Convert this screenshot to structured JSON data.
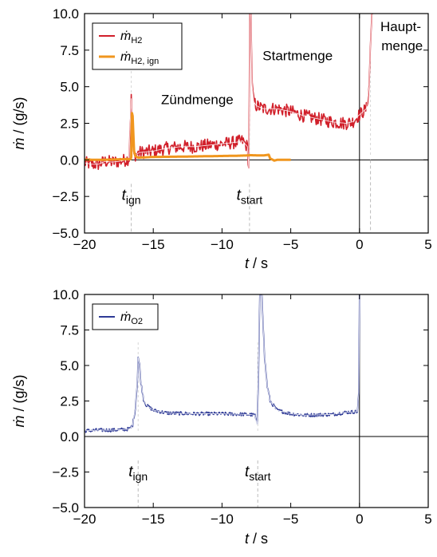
{
  "chart_data": [
    {
      "type": "line",
      "xlabel_var": "t",
      "xlabel_unit": " / s",
      "ylabel": "ṁ / (g/s)",
      "xlim": [
        -20,
        5
      ],
      "ylim": [
        -5,
        10
      ],
      "xticks": [
        -20,
        -15,
        -10,
        -5,
        0,
        5
      ],
      "yticks": [
        -5,
        -2.5,
        0,
        2.5,
        5,
        7.5,
        10
      ],
      "xtick_labels": [
        "−20",
        "−15",
        "−10",
        "−5",
        "0",
        "5"
      ],
      "ytick_labels": [
        "−5.0",
        "−2.5",
        "0.0",
        "2.5",
        "5.0",
        "7.5",
        "10.0"
      ],
      "legend_placement": "top-left",
      "legend": [
        {
          "var": "ṁ",
          "sub": "H2",
          "color": "#d11f2a"
        },
        {
          "var": "ṁ",
          "sub": "H2, ign",
          "color": "#f0961e"
        }
      ],
      "annotations": [
        {
          "text": "Zündmenge",
          "x": -11.8,
          "y": 3.8
        },
        {
          "text": "Startmenge",
          "x": -4.5,
          "y": 6.8
        },
        {
          "text": "Haupt-",
          "x": 3.0,
          "y": 8.8
        },
        {
          "text": "menge",
          "x": 3.1,
          "y": 7.5
        }
      ],
      "markers": [
        {
          "var": "t",
          "sub": "ign",
          "x": -16.6
        },
        {
          "var": "t",
          "sub": "start",
          "x": -8.0
        },
        {
          "x": 0.8
        }
      ],
      "series": [
        {
          "name": "ṁH2",
          "color": "#d11f2a",
          "noise": 0.45,
          "x": [
            -20.0,
            -19.5,
            -19.0,
            -18.5,
            -18.0,
            -17.5,
            -17.0,
            -16.75,
            -16.7,
            -16.6,
            -16.5,
            -16.4,
            -16.0,
            -15.0,
            -14.0,
            -13.0,
            -12.0,
            -11.0,
            -10.0,
            -9.0,
            -8.5,
            -8.15,
            -8.05,
            -7.98,
            -7.9,
            -7.8,
            -7.7,
            -7.5,
            -7.0,
            -6.0,
            -5.0,
            -4.0,
            -3.0,
            -2.0,
            -1.0,
            -0.5,
            -0.1,
            0.5,
            0.7,
            0.8,
            0.9,
            1.0
          ],
          "y": [
            -0.2,
            -0.3,
            -0.3,
            -0.1,
            -0.15,
            -0.1,
            0.0,
            0.1,
            2.0,
            4.2,
            1.5,
            0.3,
            0.5,
            0.6,
            0.8,
            0.9,
            0.9,
            1.0,
            1.1,
            1.2,
            1.3,
            0.9,
            -0.7,
            10.0,
            10.0,
            5.0,
            4.0,
            3.7,
            3.5,
            3.5,
            3.3,
            3.0,
            2.8,
            2.6,
            2.5,
            2.6,
            3.0,
            3.5,
            5.0,
            8.0,
            10.0,
            10.0
          ]
        },
        {
          "name": "ṁH2, ign",
          "color": "#f0961e",
          "x": [
            -20.0,
            -19.0,
            -18.0,
            -17.0,
            -16.65,
            -16.6,
            -16.55,
            -16.5,
            -16.45,
            -16.4,
            -16.3,
            -16.1,
            -15.0,
            -13.0,
            -11.0,
            -9.0,
            -8.2,
            -8.0,
            -7.0,
            -6.6,
            -6.5,
            -6.2,
            -6.0,
            -5.0
          ],
          "y": [
            0.02,
            0.0,
            0.02,
            0.05,
            0.05,
            0.2,
            3.2,
            3.0,
            1.8,
            0.6,
            0.25,
            0.15,
            0.2,
            0.22,
            0.25,
            0.28,
            0.3,
            0.32,
            0.3,
            0.35,
            0.1,
            -0.05,
            0.0,
            0.0
          ]
        }
      ]
    },
    {
      "type": "line",
      "xlabel_var": "t",
      "xlabel_unit": " / s",
      "ylabel": "ṁ / (g/s)",
      "xlim": [
        -20,
        5
      ],
      "ylim": [
        -5,
        10
      ],
      "xticks": [
        -20,
        -15,
        -10,
        -5,
        0,
        5
      ],
      "yticks": [
        -5,
        -2.5,
        0,
        2.5,
        5,
        7.5,
        10
      ],
      "xtick_labels": [
        "−20",
        "−15",
        "−10",
        "−5",
        "0",
        "5"
      ],
      "ytick_labels": [
        "−5.0",
        "−2.5",
        "0.0",
        "2.5",
        "5.0",
        "7.5",
        "10.0"
      ],
      "legend_placement": "top-left",
      "legend": [
        {
          "var": "ṁ",
          "sub": "O2",
          "color": "#2e3a96"
        }
      ],
      "annotations": [],
      "markers": [
        {
          "var": "t",
          "sub": "ign",
          "x": -16.1
        },
        {
          "var": "t",
          "sub": "start",
          "x": -7.4
        }
      ],
      "series": [
        {
          "name": "ṁO2",
          "color": "#2e3a96",
          "noise": 0.12,
          "x": [
            -20.0,
            -19.0,
            -18.0,
            -17.0,
            -16.7,
            -16.5,
            -16.3,
            -16.15,
            -16.1,
            -16.0,
            -15.9,
            -15.7,
            -15.5,
            -15.0,
            -14.0,
            -12.0,
            -10.0,
            -8.0,
            -7.6,
            -7.45,
            -7.35,
            -7.25,
            -7.1,
            -6.9,
            -6.7,
            -6.5,
            -6.0,
            -5.0,
            -4.0,
            -2.0,
            -1.0,
            -0.15,
            -0.05,
            0.0,
            0.05
          ],
          "y": [
            0.4,
            0.45,
            0.45,
            0.5,
            0.55,
            0.8,
            2.0,
            4.0,
            5.6,
            5.0,
            3.8,
            2.6,
            2.2,
            1.85,
            1.65,
            1.6,
            1.6,
            1.55,
            1.5,
            0.8,
            4.0,
            10.0,
            10.0,
            5.5,
            3.5,
            2.5,
            1.85,
            1.6,
            1.5,
            1.55,
            1.7,
            1.75,
            3.0,
            10.0,
            10.0
          ]
        }
      ]
    }
  ]
}
